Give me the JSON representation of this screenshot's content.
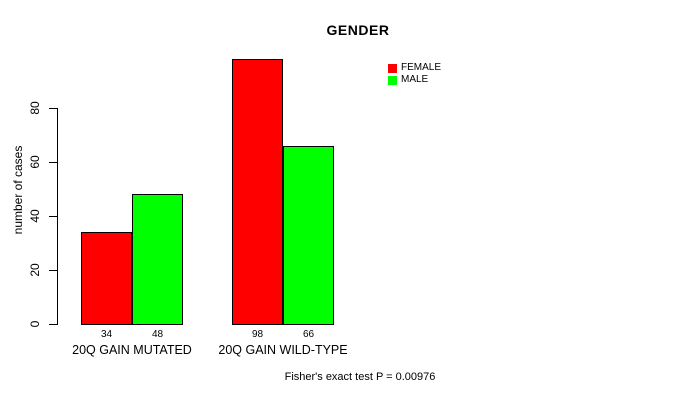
{
  "chart_data": {
    "type": "bar",
    "title": "GENDER",
    "ylabel": "number of cases",
    "xlabel": "",
    "categories": [
      "20Q GAIN MUTATED",
      "20Q GAIN WILD-TYPE"
    ],
    "series": [
      {
        "name": "FEMALE",
        "color": "#ff0000",
        "values": [
          34,
          98
        ]
      },
      {
        "name": "MALE",
        "color": "#00ff00",
        "values": [
          48,
          66
        ]
      }
    ],
    "yticks": [
      0,
      20,
      40,
      60,
      80
    ],
    "ylim": [
      0,
      98
    ],
    "grid": false,
    "legend_position": "top-right",
    "bar_border_color": "#000000",
    "background": "#ffffff",
    "annotation": "Fisher's exact test P = 0.00976"
  }
}
